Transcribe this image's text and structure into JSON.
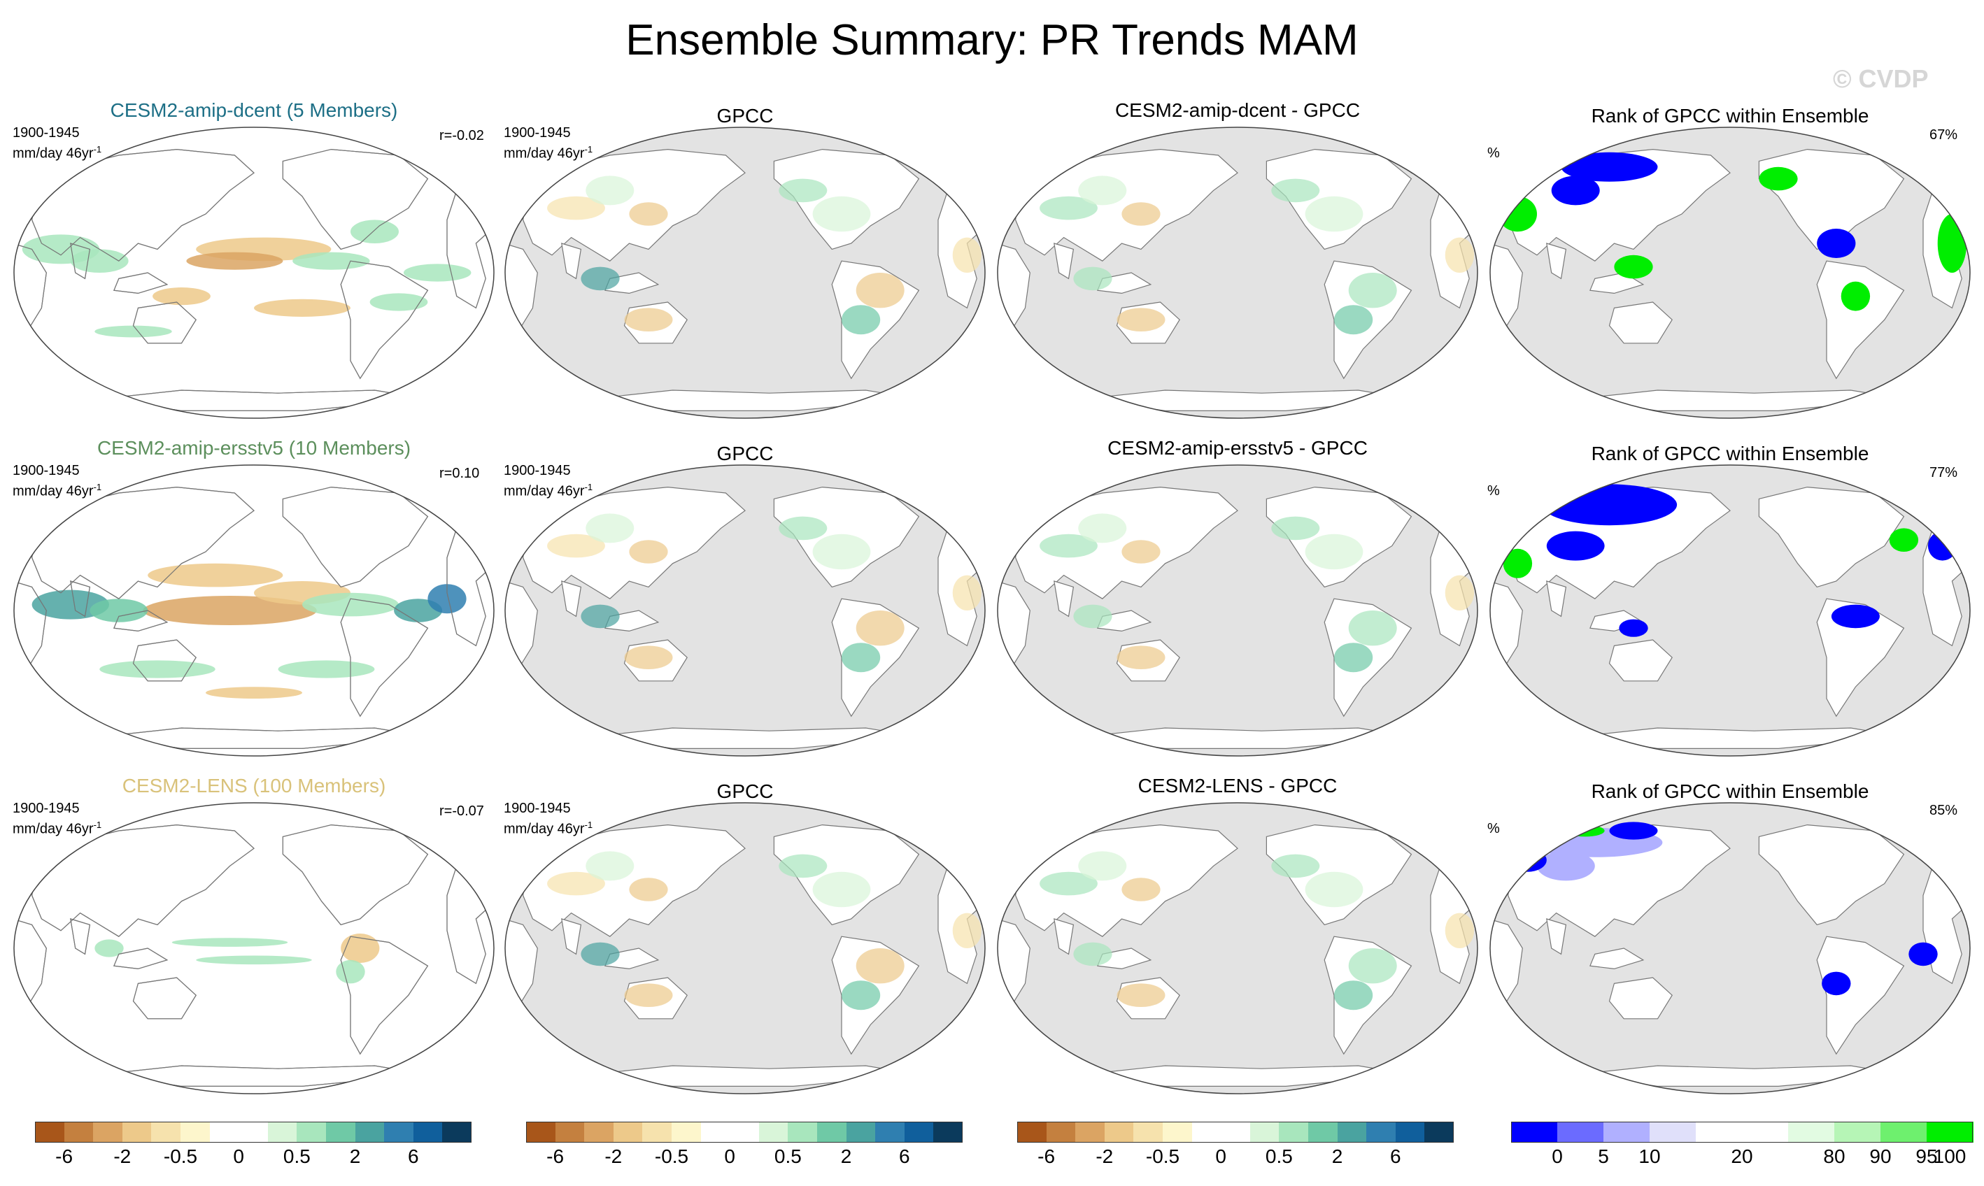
{
  "title": "Ensemble Summary: PR Trends MAM",
  "watermark": "© CVDP",
  "rows": [
    {
      "model_title": "CESM2-amip-dcent (5 Members)",
      "model_title_color": "#1d6f86",
      "period": "1900-1945",
      "units": "mm/day 46yr",
      "units_sup": "-1",
      "r_value": "r=-0.02",
      "obs_title": "GPCC",
      "diff_title": "CESM2-amip-dcent - GPCC",
      "rank_title": "Rank of GPCC within Ensemble",
      "rank_pct": "67%",
      "rank_unit": "%"
    },
    {
      "model_title": "CESM2-amip-ersstv5 (10 Members)",
      "model_title_color": "#5c8f5c",
      "period": "1900-1945",
      "units": "mm/day 46yr",
      "units_sup": "-1",
      "r_value": "r=0.10",
      "obs_title": "GPCC",
      "diff_title": "CESM2-amip-ersstv5 - GPCC",
      "rank_title": "Rank of GPCC within Ensemble",
      "rank_pct": "77%",
      "rank_unit": "%"
    },
    {
      "model_title": "CESM2-LENS (100 Members)",
      "model_title_color": "#d9c27a",
      "period": "1900-1945",
      "units": "mm/day 46yr",
      "units_sup": "-1",
      "r_value": "r=-0.07",
      "obs_title": "GPCC",
      "diff_title": "CESM2-LENS - GPCC",
      "rank_title": "Rank of GPCC within Ensemble",
      "rank_pct": "85%",
      "rank_unit": "%"
    }
  ],
  "colorbar_trend": {
    "colors": [
      "#a8561a",
      "#c4803f",
      "#dba463",
      "#edc98a",
      "#f6e2ad",
      "#fdf6cc",
      "#ffffff",
      "#ffffff",
      "#d9f5d9",
      "#a8e6bd",
      "#6fc9a6",
      "#4aa3a0",
      "#2f7fb0",
      "#105f9c",
      "#0b3a5c"
    ],
    "labels": [
      "-6",
      "-2",
      "-0.5",
      "0",
      "0.5",
      "2",
      "6"
    ]
  },
  "colorbar_rank": {
    "colors": [
      "#0000ff",
      "#6b6bff",
      "#b0b0ff",
      "#e0e0fa",
      "#ffffff",
      "#ffffff",
      "#e2fbe2",
      "#b6f5b6",
      "#6ef06e",
      "#00ee00"
    ],
    "labels": [
      "0",
      "5",
      "10",
      "20",
      "80",
      "90",
      "95",
      "100"
    ]
  },
  "chart_data": [
    {
      "type": "heatmap",
      "title": "Ensemble Summary: PR Trends MAM",
      "panels": [
        "CESM2-amip-dcent (5 Members)",
        "GPCC",
        "CESM2-amip-dcent - GPCC",
        "Rank of GPCC within Ensemble",
        "CESM2-amip-ersstv5 (10 Members)",
        "GPCC",
        "CESM2-amip-ersstv5 - GPCC",
        "Rank of GPCC within Ensemble",
        "CESM2-LENS (100 Members)",
        "GPCC",
        "CESM2-LENS - GPCC",
        "Rank of GPCC within Ensemble"
      ],
      "pattern_correlations": [
        "r=-0.02",
        "r=0.10",
        "r=-0.07"
      ],
      "rank_percentages": [
        "67%",
        "77%",
        "85%"
      ],
      "trend_levels": [
        -6,
        -2,
        -0.5,
        0,
        0.5,
        2,
        6
      ],
      "rank_levels": [
        0,
        5,
        10,
        20,
        80,
        90,
        95,
        100
      ]
    }
  ]
}
